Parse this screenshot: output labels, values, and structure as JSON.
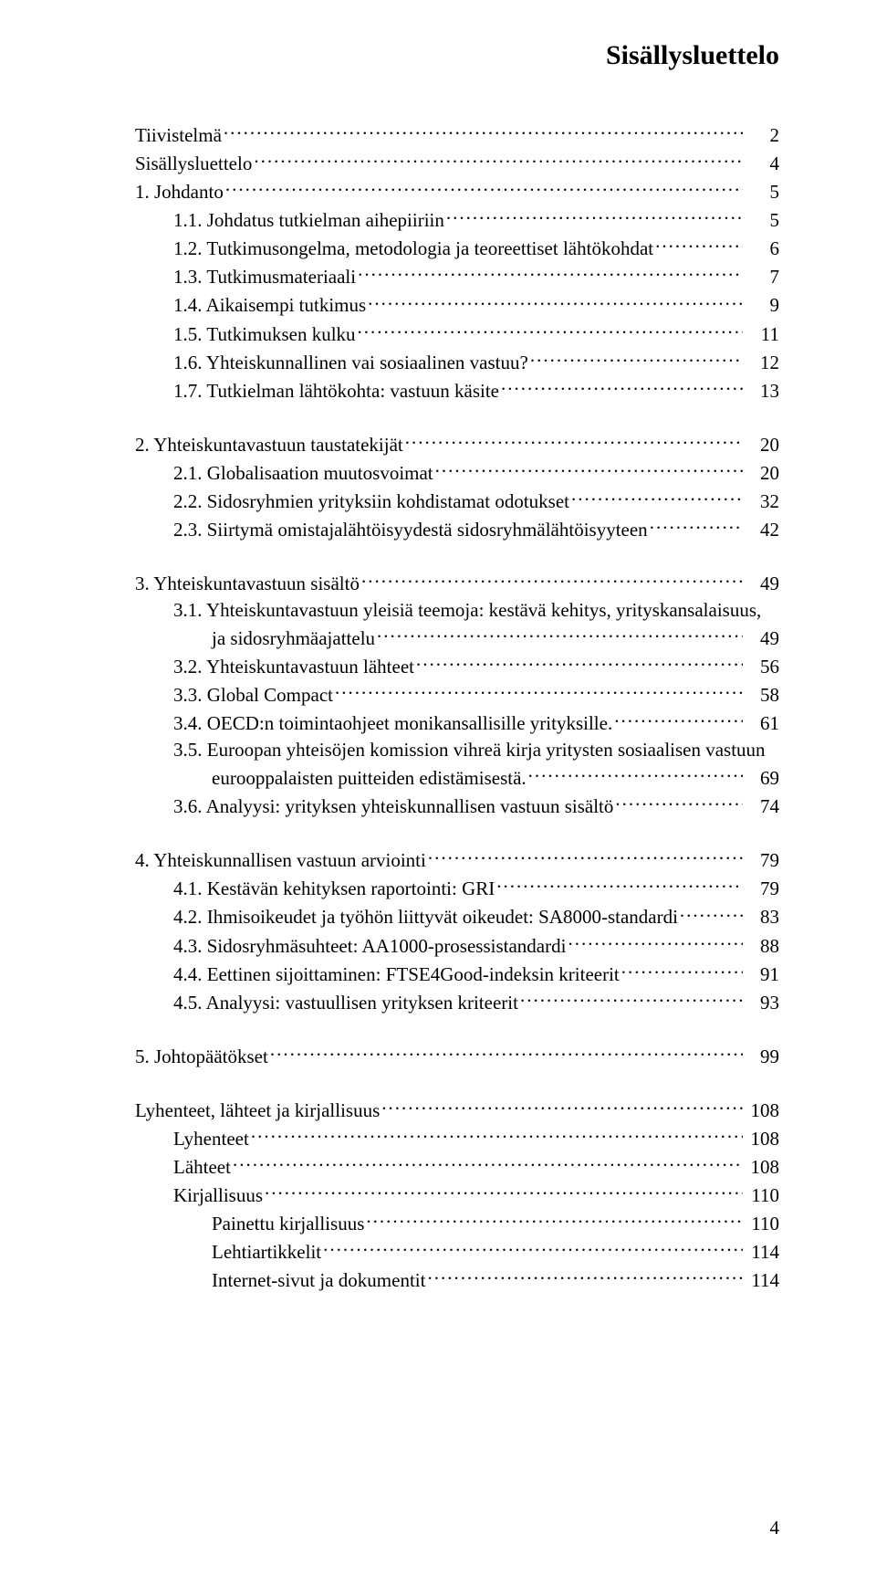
{
  "title": "Sisällysluettelo",
  "page_number": "4",
  "toc": [
    {
      "type": "entry",
      "level": 0,
      "label": "Tiivistelmä",
      "page": "2"
    },
    {
      "type": "entry",
      "level": 0,
      "label": "Sisällysluettelo",
      "page": "4"
    },
    {
      "type": "entry",
      "level": 0,
      "label": "1. Johdanto",
      "page": "5"
    },
    {
      "type": "entry",
      "level": 1,
      "label": "1.1. Johdatus tutkielman aihepiiriin",
      "page": "5"
    },
    {
      "type": "entry",
      "level": 1,
      "label": "1.2. Tutkimusongelma, metodologia ja teoreettiset lähtökohdat",
      "page": "6"
    },
    {
      "type": "entry",
      "level": 1,
      "label": "1.3. Tutkimusmateriaali",
      "page": "7"
    },
    {
      "type": "entry",
      "level": 1,
      "label": "1.4. Aikaisempi tutkimus",
      "page": "9"
    },
    {
      "type": "entry",
      "level": 1,
      "label": "1.5. Tutkimuksen kulku",
      "page": "11"
    },
    {
      "type": "entry",
      "level": 1,
      "label": "1.6. Yhteiskunnallinen vai sosiaalinen vastuu?",
      "page": "12"
    },
    {
      "type": "entry",
      "level": 1,
      "label": "1.7. Tutkielman lähtökohta: vastuun käsite",
      "page": "13"
    },
    {
      "type": "gap"
    },
    {
      "type": "entry",
      "level": 0,
      "label": "2. Yhteiskuntavastuun taustatekijät",
      "page": "20"
    },
    {
      "type": "entry",
      "level": 1,
      "label": "2.1. Globalisaation muutosvoimat",
      "page": "20"
    },
    {
      "type": "entry",
      "level": 1,
      "label": "2.2. Sidosryhmien yrityksiin kohdistamat odotukset",
      "page": "32"
    },
    {
      "type": "entry",
      "level": 1,
      "label": "2.3. Siirtymä omistajalähtöisyydestä sidosryhmälähtöisyyteen",
      "page": "42"
    },
    {
      "type": "gap"
    },
    {
      "type": "entry",
      "level": 0,
      "label": "3. Yhteiskuntavastuun sisältö",
      "page": "49"
    },
    {
      "type": "multi",
      "level": 1,
      "label1": "3.1. Yhteiskuntavastuun yleisiä teemoja: kestävä kehitys, yrityskansalaisuus,",
      "label2_indent": 2,
      "label2": "ja sidosryhmäajattelu",
      "page": "49"
    },
    {
      "type": "entry",
      "level": 1,
      "label": "3.2. Yhteiskuntavastuun lähteet",
      "page": "56"
    },
    {
      "type": "entry",
      "level": 1,
      "label": "3.3. Global Compact",
      "page": "58"
    },
    {
      "type": "entry",
      "level": 1,
      "label": "3.4. OECD:n toimintaohjeet monikansallisille yrityksille.",
      "page": "61"
    },
    {
      "type": "multi",
      "level": 1,
      "label1": "3.5. Euroopan yhteisöjen komission vihreä kirja yritysten sosiaalisen vastuun",
      "label2_indent": 2,
      "label2": "eurooppalaisten puitteiden edistämisestä.",
      "page": "69"
    },
    {
      "type": "entry",
      "level": 1,
      "label": "3.6. Analyysi: yrityksen yhteiskunnallisen vastuun sisältö",
      "page": "74"
    },
    {
      "type": "gap"
    },
    {
      "type": "entry",
      "level": 0,
      "label": "4. Yhteiskunnallisen vastuun arviointi",
      "page": "79"
    },
    {
      "type": "entry",
      "level": 1,
      "label": "4.1. Kestävän kehityksen raportointi: GRI",
      "page": "79"
    },
    {
      "type": "entry",
      "level": 1,
      "label": "4.2. Ihmisoikeudet ja työhön liittyvät oikeudet: SA8000-standardi",
      "page": "83"
    },
    {
      "type": "entry",
      "level": 1,
      "label": "4.3. Sidosryhmäsuhteet: AA1000-prosessistandardi",
      "page": "88"
    },
    {
      "type": "entry",
      "level": 1,
      "label": "4.4. Eettinen sijoittaminen: FTSE4Good-indeksin kriteerit",
      "page": "91"
    },
    {
      "type": "entry",
      "level": 1,
      "label": "4.5. Analyysi: vastuullisen yrityksen kriteerit",
      "page": "93"
    },
    {
      "type": "gap"
    },
    {
      "type": "entry",
      "level": 0,
      "label": "5. Johtopäätökset",
      "page": "99"
    },
    {
      "type": "gap"
    },
    {
      "type": "entry",
      "level": 0,
      "label": "Lyhenteet, lähteet ja kirjallisuus",
      "page": "108"
    },
    {
      "type": "entry",
      "level": 1,
      "label": "Lyhenteet",
      "page": "108"
    },
    {
      "type": "entry",
      "level": 1,
      "label": "Lähteet",
      "page": "108"
    },
    {
      "type": "entry",
      "level": 1,
      "label": "Kirjallisuus",
      "page": "110"
    },
    {
      "type": "entry",
      "level": 2,
      "label": "Painettu kirjallisuus",
      "page": "110"
    },
    {
      "type": "entry",
      "level": 2,
      "label": "Lehtiartikkelit",
      "page": "114"
    },
    {
      "type": "entry",
      "level": 2,
      "label": "Internet-sivut ja dokumentit",
      "page": "114"
    }
  ]
}
